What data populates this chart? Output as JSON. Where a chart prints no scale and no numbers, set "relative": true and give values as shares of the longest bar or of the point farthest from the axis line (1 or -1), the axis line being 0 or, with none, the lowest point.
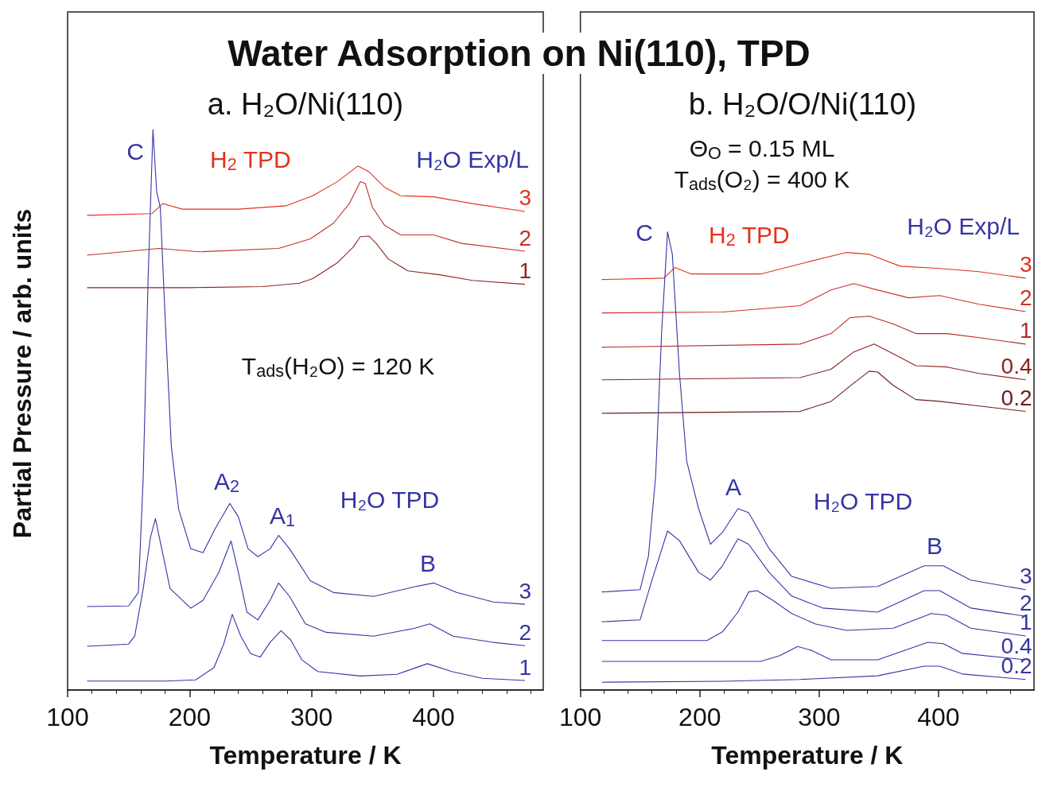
{
  "chart_data": [
    {
      "type": "line",
      "relative": true,
      "title": "Water Adsorption on Ni(110), TPD",
      "subtitle": "a. H₂O/Ni(110)",
      "xlabel": "Temperature / K",
      "ylabel": "Partial Pressure / arb. units",
      "legend_title": "H₂O Exp/L",
      "xlim": [
        100,
        490
      ],
      "xticks": [
        100,
        200,
        300,
        400
      ],
      "annotations": [
        "C",
        "H$_{2}$ TPD",
        "T$_{ads}$(H₂O) = 120 K",
        "A$_{2}$",
        "A$_{1}$",
        "H₂O TPD",
        "B"
      ],
      "series": [
        {
          "name": "3",
          "color": "#e2321e",
          "x": [
            116,
            169,
            178,
            194,
            240,
            279,
            301,
            321,
            338,
            347,
            360,
            373,
            400,
            432,
            475
          ],
          "values": [
            0.847,
            0.85,
            0.868,
            0.858,
            0.858,
            0.864,
            0.882,
            0.907,
            0.935,
            0.925,
            0.897,
            0.882,
            0.88,
            0.868,
            0.854
          ]
        },
        {
          "name": "2",
          "color": "#c0302a",
          "x": [
            116,
            175,
            208,
            273,
            299,
            318,
            331,
            340,
            344,
            350,
            360,
            373,
            400,
            423,
            475
          ],
          "values": [
            0.776,
            0.788,
            0.782,
            0.788,
            0.805,
            0.833,
            0.868,
            0.907,
            0.904,
            0.861,
            0.829,
            0.812,
            0.812,
            0.797,
            0.783
          ]
        },
        {
          "name": "1",
          "color": "#922424",
          "x": [
            116,
            200,
            260,
            290,
            301,
            321,
            334,
            340,
            347,
            353,
            363,
            379,
            405,
            432,
            475
          ],
          "values": [
            0.718,
            0.718,
            0.72,
            0.726,
            0.734,
            0.762,
            0.79,
            0.809,
            0.81,
            0.797,
            0.769,
            0.748,
            0.741,
            0.731,
            0.724
          ]
        },
        {
          "name": "3",
          "color": "#3535a5",
          "x": [
            116,
            150,
            158,
            162,
            166,
            170,
            173,
            176,
            180,
            185,
            191,
            201,
            211,
            221,
            233,
            240,
            248,
            256,
            266,
            273,
            282,
            299,
            318,
            351,
            384,
            400,
            419,
            449,
            475
          ],
          "values": [
            0.149,
            0.15,
            0.174,
            0.38,
            0.734,
            1.0,
            0.89,
            0.861,
            0.663,
            0.436,
            0.323,
            0.252,
            0.245,
            0.288,
            0.333,
            0.309,
            0.252,
            0.238,
            0.252,
            0.276,
            0.252,
            0.195,
            0.174,
            0.167,
            0.184,
            0.191,
            0.174,
            0.157,
            0.153
          ]
        },
        {
          "name": "2",
          "color": "#3535a5",
          "x": [
            116,
            150,
            155,
            162,
            168,
            172,
            184,
            201,
            211,
            224,
            234,
            240,
            247,
            256,
            266,
            273,
            282,
            295,
            312,
            351,
            384,
            397,
            416,
            449,
            475
          ],
          "values": [
            0.078,
            0.082,
            0.096,
            0.181,
            0.273,
            0.306,
            0.181,
            0.146,
            0.16,
            0.21,
            0.266,
            0.21,
            0.139,
            0.125,
            0.16,
            0.191,
            0.167,
            0.118,
            0.103,
            0.096,
            0.11,
            0.118,
            0.096,
            0.085,
            0.079
          ]
        },
        {
          "name": "1",
          "color": "#3535a5",
          "x": [
            116,
            180,
            205,
            220,
            228,
            235,
            242,
            250,
            258,
            266,
            275,
            283,
            292,
            305,
            340,
            370,
            395,
            415,
            440,
            475
          ],
          "values": [
            0.016,
            0.016,
            0.018,
            0.04,
            0.082,
            0.135,
            0.096,
            0.065,
            0.059,
            0.085,
            0.106,
            0.089,
            0.054,
            0.033,
            0.025,
            0.028,
            0.047,
            0.033,
            0.021,
            0.017
          ]
        }
      ]
    },
    {
      "type": "line",
      "relative": true,
      "subtitle": "b. H₂O/O/Ni(110)",
      "xlabel": "Temperature / K",
      "legend_title": "H₂O Exp/L",
      "xlim": [
        100,
        480
      ],
      "xticks": [
        100,
        200,
        300,
        400
      ],
      "annotations": [
        "Θ$_{O}$ = 0.15 ML",
        "T$_{ads}$(O₂) = 400 K",
        "C",
        "H$_{2}$ TPD",
        "A",
        "H₂O TPD",
        "B"
      ],
      "series": [
        {
          "name": "3",
          "color": "#e2321e",
          "x": [
            118,
            170,
            179,
            193,
            251,
            290,
            323,
            342,
            368,
            401,
            434,
            473
          ],
          "values": [
            0.896,
            0.899,
            0.922,
            0.908,
            0.908,
            0.934,
            0.955,
            0.951,
            0.925,
            0.92,
            0.913,
            0.899
          ]
        },
        {
          "name": "2",
          "color": "#d03228",
          "x": [
            118,
            219,
            284,
            310,
            329,
            349,
            375,
            401,
            434,
            473
          ],
          "values": [
            0.823,
            0.825,
            0.839,
            0.873,
            0.887,
            0.873,
            0.856,
            0.861,
            0.842,
            0.826
          ]
        },
        {
          "name": "1",
          "color": "#b02a28",
          "x": [
            118,
            284,
            310,
            326,
            342,
            362,
            381,
            407,
            434,
            473
          ],
          "values": [
            0.748,
            0.755,
            0.778,
            0.813,
            0.816,
            0.799,
            0.778,
            0.778,
            0.769,
            0.755
          ]
        },
        {
          "name": "0.4",
          "color": "#8b2220",
          "x": [
            118,
            284,
            310,
            329,
            346,
            362,
            381,
            407,
            434,
            473
          ],
          "values": [
            0.677,
            0.682,
            0.7,
            0.738,
            0.755,
            0.734,
            0.708,
            0.705,
            0.691,
            0.677
          ]
        },
        {
          "name": "0.2",
          "color": "#6b1c1a",
          "x": [
            118,
            284,
            310,
            329,
            342,
            349,
            362,
            381,
            401,
            427,
            473
          ],
          "values": [
            0.604,
            0.608,
            0.63,
            0.67,
            0.696,
            0.694,
            0.665,
            0.634,
            0.63,
            0.622,
            0.608
          ]
        },
        {
          "name": "3",
          "color": "#3535a5",
          "x": [
            118,
            150,
            157,
            163,
            168,
            173,
            177,
            183,
            189,
            199,
            209,
            219,
            232,
            241,
            258,
            277,
            310,
            349,
            388,
            404,
            427,
            473
          ],
          "values": [
            0.214,
            0.219,
            0.292,
            0.465,
            0.778,
            1.0,
            0.951,
            0.691,
            0.5,
            0.396,
            0.318,
            0.344,
            0.396,
            0.387,
            0.309,
            0.248,
            0.222,
            0.226,
            0.271,
            0.271,
            0.24,
            0.219
          ]
        },
        {
          "name": "2",
          "color": "#3535a5",
          "x": [
            118,
            150,
            160,
            173,
            183,
            199,
            209,
            219,
            232,
            241,
            258,
            277,
            303,
            349,
            388,
            401,
            427,
            473
          ],
          "values": [
            0.149,
            0.153,
            0.24,
            0.347,
            0.326,
            0.257,
            0.24,
            0.271,
            0.33,
            0.318,
            0.257,
            0.205,
            0.179,
            0.17,
            0.217,
            0.217,
            0.179,
            0.161
          ]
        },
        {
          "name": "1",
          "color": "#3535a5",
          "x": [
            118,
            206,
            219,
            232,
            241,
            248,
            261,
            277,
            297,
            323,
            362,
            394,
            407,
            427,
            473
          ],
          "values": [
            0.108,
            0.108,
            0.127,
            0.17,
            0.214,
            0.217,
            0.196,
            0.167,
            0.144,
            0.13,
            0.135,
            0.167,
            0.163,
            0.135,
            0.118
          ]
        },
        {
          "name": "0.4",
          "color": "#3535a5",
          "x": [
            118,
            251,
            267,
            282,
            293,
            310,
            349,
            391,
            404,
            420,
            473
          ],
          "values": [
            0.0625,
            0.0625,
            0.075,
            0.095,
            0.087,
            0.066,
            0.066,
            0.104,
            0.101,
            0.08,
            0.066
          ]
        },
        {
          "name": "0.2",
          "color": "#3535a5",
          "x": [
            118,
            219,
            284,
            349,
            388,
            401,
            420,
            473
          ],
          "values": [
            0.017,
            0.019,
            0.023,
            0.031,
            0.052,
            0.052,
            0.035,
            0.023
          ]
        }
      ]
    }
  ]
}
